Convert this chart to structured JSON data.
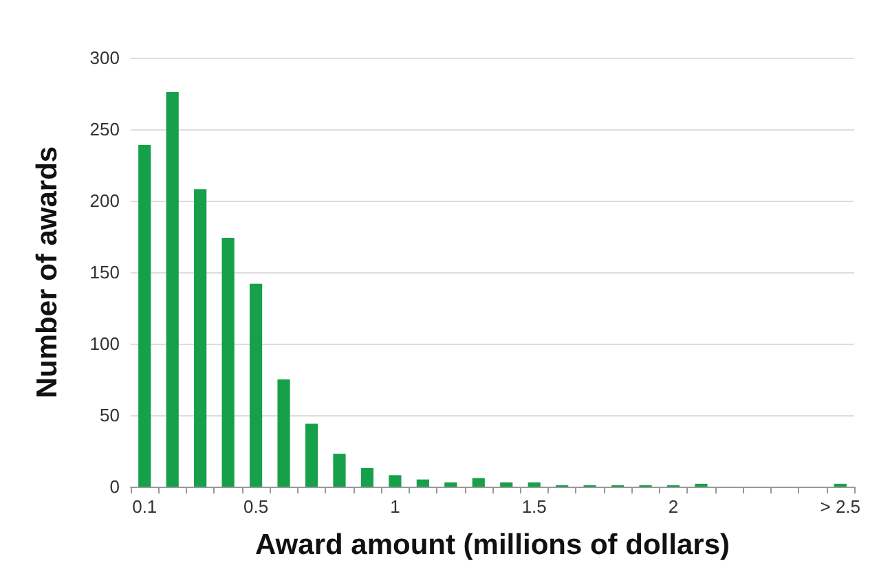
{
  "chart_data": {
    "type": "bar",
    "xlabel": "Award amount (millions of dollars)",
    "ylabel": "Number of awards",
    "categories": [
      "0.1",
      null,
      null,
      null,
      "0.5",
      null,
      null,
      null,
      null,
      "1",
      null,
      null,
      null,
      null,
      "1.5",
      null,
      null,
      null,
      null,
      "2",
      null,
      null,
      null,
      null,
      null,
      "> 2.5"
    ],
    "values": [
      239,
      276,
      208,
      174,
      142,
      75,
      44,
      23,
      13,
      8,
      5,
      3,
      6,
      3,
      3,
      1,
      1,
      1,
      1,
      1,
      2,
      0,
      0,
      0,
      0,
      2
    ],
    "color": "#17a04a",
    "ylim": [
      0,
      300
    ],
    "yticks": [
      0,
      50,
      100,
      150,
      200,
      250,
      300
    ],
    "grid": "y"
  }
}
